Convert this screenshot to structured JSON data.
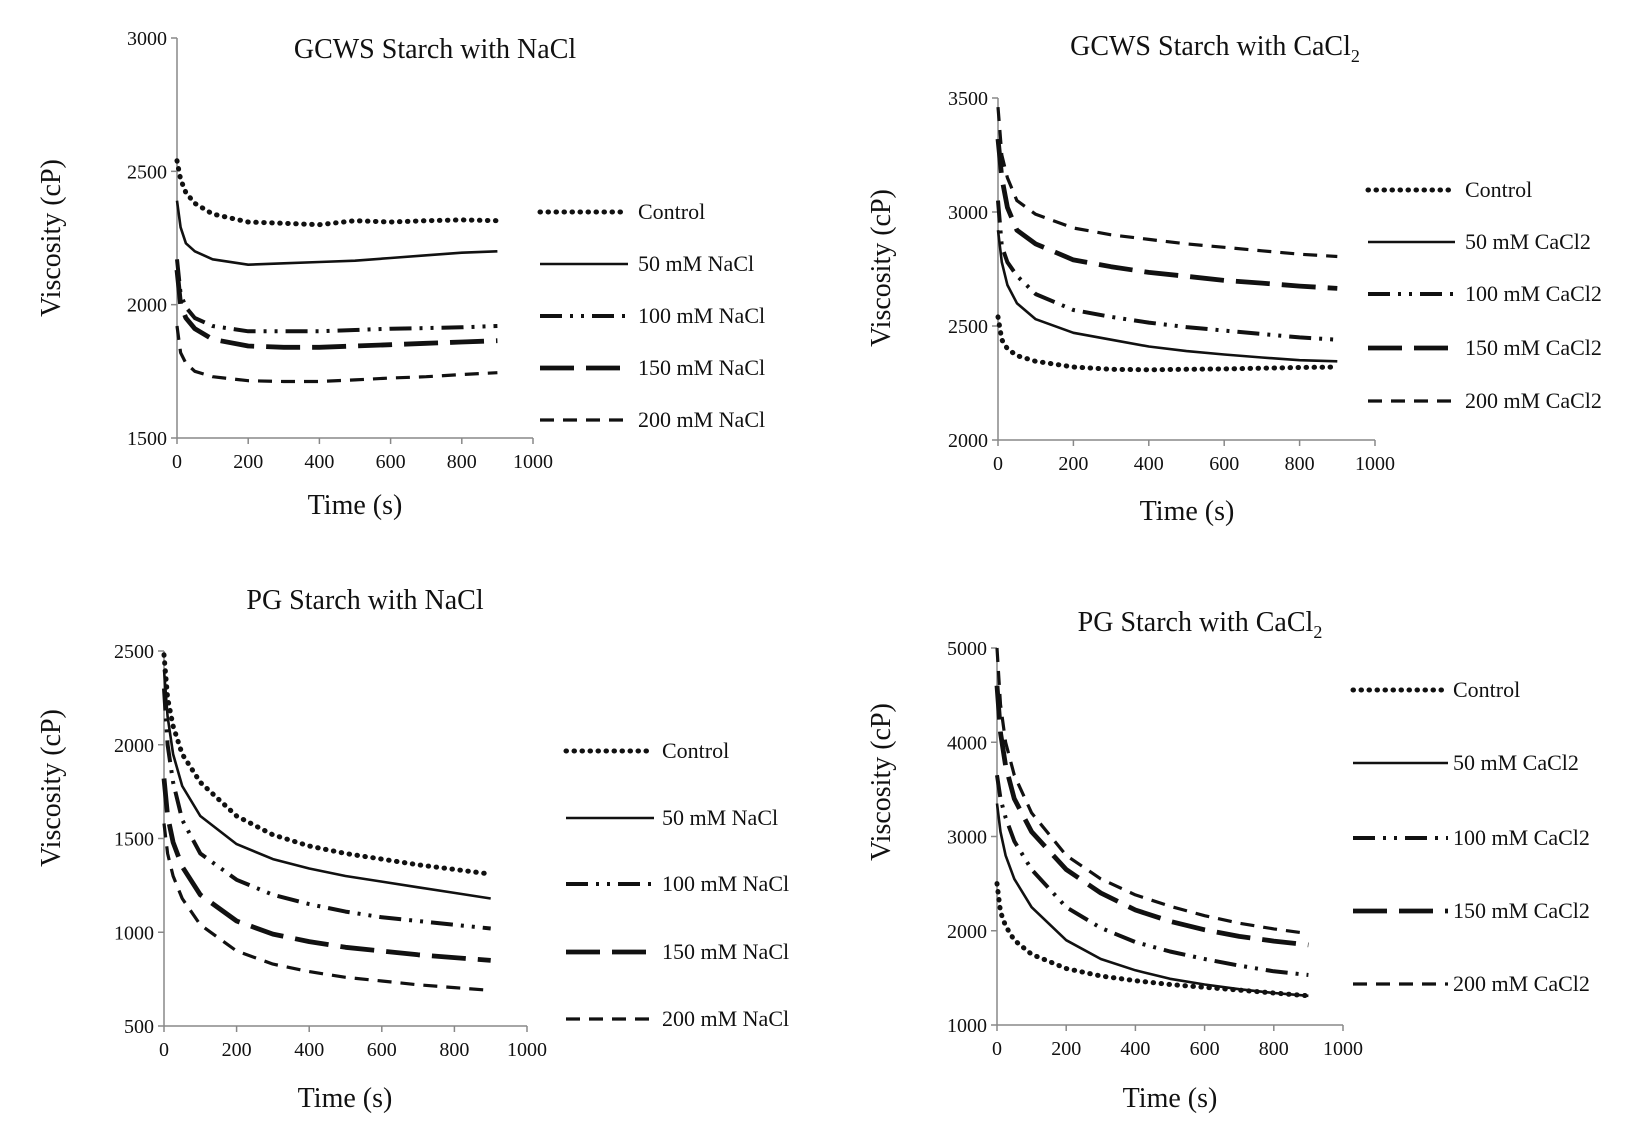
{
  "chart_data": [
    {
      "type": "line",
      "title": "GCWS Starch with NaCl",
      "xlabel": "Time (s)",
      "ylabel": "Viscosity (cP)",
      "xlim": [
        0,
        1000
      ],
      "ylim": [
        1500,
        3000
      ],
      "xticks": [
        "0",
        "200",
        "400",
        "600",
        "800",
        "1000"
      ],
      "yticks": [
        "1500",
        "2000",
        "2500",
        "3000"
      ],
      "grid": false,
      "legend": "right",
      "series": [
        {
          "name": "Control",
          "style": "dotted",
          "x": [
            0,
            10,
            25,
            50,
            100,
            200,
            300,
            400,
            500,
            600,
            700,
            800,
            900
          ],
          "y": [
            2540,
            2470,
            2420,
            2380,
            2340,
            2310,
            2305,
            2300,
            2315,
            2310,
            2315,
            2318,
            2315
          ]
        },
        {
          "name": "50 mM NaCl",
          "style": "solid",
          "x": [
            0,
            10,
            25,
            50,
            100,
            200,
            300,
            400,
            500,
            600,
            700,
            800,
            900
          ],
          "y": [
            2390,
            2290,
            2230,
            2200,
            2170,
            2150,
            2155,
            2160,
            2165,
            2175,
            2185,
            2195,
            2200
          ]
        },
        {
          "name": "100  mM NaCl",
          "style": "dash-dot-dot",
          "x": [
            0,
            10,
            25,
            50,
            100,
            200,
            300,
            400,
            500,
            600,
            700,
            800,
            900
          ],
          "y": [
            2170,
            2040,
            1990,
            1950,
            1920,
            1900,
            1900,
            1900,
            1905,
            1910,
            1912,
            1915,
            1920
          ]
        },
        {
          "name": "150  mM NaCl",
          "style": "long-dash",
          "x": [
            0,
            10,
            25,
            50,
            100,
            200,
            300,
            400,
            500,
            600,
            700,
            800,
            900
          ],
          "y": [
            2130,
            2000,
            1950,
            1910,
            1870,
            1845,
            1840,
            1840,
            1845,
            1850,
            1855,
            1860,
            1865
          ]
        },
        {
          "name": "200  mM NaCl",
          "style": "short-dash",
          "x": [
            0,
            10,
            25,
            50,
            100,
            200,
            300,
            400,
            500,
            600,
            700,
            800,
            900
          ],
          "y": [
            1920,
            1820,
            1780,
            1750,
            1730,
            1715,
            1712,
            1712,
            1718,
            1725,
            1730,
            1738,
            1745
          ]
        }
      ]
    },
    {
      "type": "line",
      "title": "GCWS Starch with CaCl",
      "title_subscript": "2",
      "xlabel": "Time (s)",
      "ylabel": "Viscosity (cP)",
      "xlim": [
        0,
        1000
      ],
      "ylim": [
        2000,
        3500
      ],
      "xticks": [
        "0",
        "200",
        "400",
        "600",
        "800",
        "1000"
      ],
      "yticks": [
        "2000",
        "2500",
        "3000",
        "3500"
      ],
      "grid": false,
      "legend": "right",
      "series": [
        {
          "name": "Control",
          "style": "dotted",
          "x": [
            0,
            10,
            25,
            50,
            100,
            200,
            300,
            400,
            500,
            600,
            700,
            800,
            900
          ],
          "y": [
            2540,
            2440,
            2400,
            2370,
            2345,
            2320,
            2310,
            2308,
            2310,
            2312,
            2315,
            2318,
            2320
          ]
        },
        {
          "name": "50 mM CaCl2",
          "style": "solid",
          "x": [
            0,
            10,
            25,
            50,
            100,
            200,
            300,
            400,
            500,
            600,
            700,
            800,
            900
          ],
          "y": [
            2920,
            2780,
            2680,
            2600,
            2530,
            2470,
            2440,
            2410,
            2390,
            2375,
            2362,
            2350,
            2345
          ]
        },
        {
          "name": "100 mM CaCl2",
          "style": "dash-dot-dot",
          "x": [
            0,
            10,
            25,
            50,
            100,
            200,
            300,
            400,
            500,
            600,
            700,
            800,
            900
          ],
          "y": [
            3050,
            2850,
            2780,
            2720,
            2640,
            2570,
            2540,
            2515,
            2495,
            2480,
            2465,
            2450,
            2440
          ]
        },
        {
          "name": "150 mM CaCl2",
          "style": "long-dash",
          "x": [
            0,
            10,
            25,
            50,
            100,
            200,
            300,
            400,
            500,
            600,
            700,
            800,
            900
          ],
          "y": [
            3320,
            3150,
            3020,
            2920,
            2860,
            2790,
            2760,
            2735,
            2718,
            2700,
            2688,
            2675,
            2665
          ]
        },
        {
          "name": "200 mM CaCl2",
          "style": "short-dash",
          "x": [
            0,
            10,
            25,
            50,
            100,
            200,
            300,
            400,
            500,
            600,
            700,
            800,
            900
          ],
          "y": [
            3460,
            3250,
            3150,
            3050,
            2990,
            2930,
            2900,
            2880,
            2860,
            2845,
            2830,
            2815,
            2805
          ]
        }
      ]
    },
    {
      "type": "line",
      "title": "PG Starch with NaCl",
      "xlabel": "Time (s)",
      "ylabel": "Viscosity (cP)",
      "xlim": [
        0,
        1000
      ],
      "ylim": [
        500,
        2500
      ],
      "xticks": [
        "0",
        "200",
        "400",
        "600",
        "800",
        "1000"
      ],
      "yticks": [
        "500",
        "1000",
        "1500",
        "2000",
        "2500"
      ],
      "grid": false,
      "legend": "right",
      "series": [
        {
          "name": "Control",
          "style": "dotted",
          "x": [
            0,
            10,
            25,
            50,
            100,
            200,
            300,
            400,
            500,
            600,
            700,
            800,
            900
          ],
          "y": [
            2480,
            2250,
            2100,
            1950,
            1800,
            1620,
            1520,
            1460,
            1420,
            1390,
            1360,
            1335,
            1310
          ]
        },
        {
          "name": "50 mM NaCl",
          "style": "solid",
          "x": [
            0,
            10,
            25,
            50,
            100,
            200,
            300,
            400,
            500,
            600,
            700,
            800,
            900
          ],
          "y": [
            2400,
            2150,
            1950,
            1780,
            1620,
            1470,
            1390,
            1340,
            1300,
            1270,
            1240,
            1210,
            1180
          ]
        },
        {
          "name": "100 mM NaCl",
          "style": "dash-dot-dot",
          "x": [
            0,
            10,
            25,
            50,
            100,
            200,
            300,
            400,
            500,
            600,
            700,
            800,
            900
          ],
          "y": [
            2300,
            2000,
            1800,
            1600,
            1420,
            1280,
            1200,
            1150,
            1110,
            1080,
            1060,
            1040,
            1020
          ]
        },
        {
          "name": "150 mM NaCl",
          "style": "long-dash",
          "x": [
            0,
            10,
            25,
            50,
            100,
            200,
            300,
            400,
            500,
            600,
            700,
            800,
            900
          ],
          "y": [
            1820,
            1620,
            1480,
            1350,
            1200,
            1060,
            990,
            950,
            920,
            900,
            880,
            865,
            850
          ]
        },
        {
          "name": "200 mM NaCl",
          "style": "short-dash",
          "x": [
            0,
            10,
            25,
            50,
            100,
            200,
            300,
            400,
            500,
            600,
            700,
            800,
            900
          ],
          "y": [
            1580,
            1420,
            1300,
            1180,
            1040,
            900,
            830,
            790,
            760,
            740,
            720,
            705,
            690
          ]
        }
      ]
    },
    {
      "type": "line",
      "title": "PG Starch with CaCl",
      "title_subscript": "2",
      "xlabel": "Time (s)",
      "ylabel": "Viscosity (cP)",
      "xlim": [
        0,
        1000
      ],
      "ylim": [
        1000,
        5000
      ],
      "xticks": [
        "0",
        "200",
        "400",
        "600",
        "800",
        "1000"
      ],
      "yticks": [
        "1000",
        "2000",
        "3000",
        "4000",
        "5000"
      ],
      "grid": false,
      "legend": "right",
      "series": [
        {
          "name": "Control",
          "style": "dotted",
          "x": [
            0,
            10,
            25,
            50,
            100,
            200,
            300,
            400,
            500,
            600,
            700,
            800,
            900
          ],
          "y": [
            2500,
            2200,
            2050,
            1900,
            1750,
            1600,
            1520,
            1470,
            1430,
            1400,
            1370,
            1340,
            1310
          ]
        },
        {
          "name": "50 mM CaCl2",
          "style": "solid",
          "x": [
            0,
            10,
            25,
            50,
            100,
            200,
            300,
            400,
            500,
            600,
            700,
            800,
            900
          ],
          "y": [
            3350,
            3050,
            2800,
            2550,
            2250,
            1900,
            1700,
            1580,
            1490,
            1430,
            1380,
            1340,
            1310
          ]
        },
        {
          "name": "100 mM CaCl2",
          "style": "dash-dot-dot",
          "x": [
            0,
            10,
            25,
            50,
            100,
            200,
            300,
            400,
            500,
            600,
            700,
            800,
            900
          ],
          "y": [
            3650,
            3400,
            3200,
            2950,
            2650,
            2250,
            2030,
            1880,
            1780,
            1700,
            1630,
            1570,
            1530
          ]
        },
        {
          "name": "150 mM CaCl2",
          "style": "long-dash",
          "x": [
            0,
            10,
            25,
            50,
            100,
            200,
            300,
            400,
            500,
            600,
            700,
            800,
            900
          ],
          "y": [
            4600,
            4100,
            3750,
            3400,
            3050,
            2650,
            2400,
            2220,
            2100,
            2010,
            1940,
            1890,
            1850
          ]
        },
        {
          "name": "200 mM CaCl2",
          "style": "short-dash",
          "x": [
            0,
            10,
            25,
            50,
            100,
            200,
            300,
            400,
            500,
            600,
            700,
            800,
            900
          ],
          "y": [
            5000,
            4400,
            4000,
            3650,
            3250,
            2800,
            2550,
            2380,
            2260,
            2160,
            2080,
            2020,
            1970
          ]
        }
      ]
    }
  ]
}
